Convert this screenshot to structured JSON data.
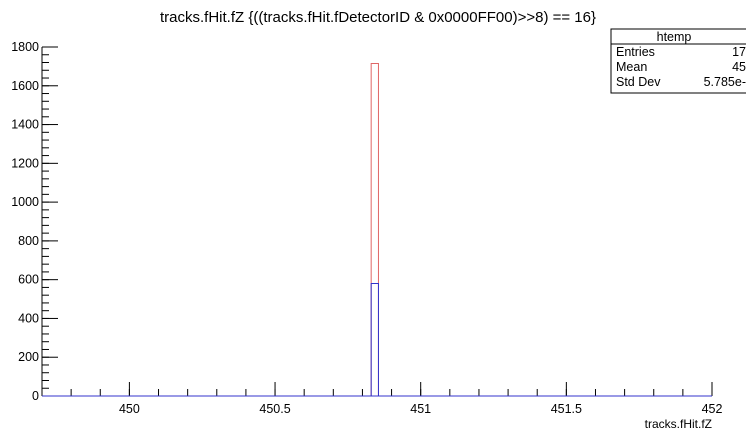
{
  "chart_data": {
    "type": "bar",
    "title": "tracks.fHit.fZ {((tracks.fHit.fDetectorID & 0x0000FF00)>>8) == 16}",
    "xlabel": "tracks.fHit.fZ",
    "ylabel": "",
    "xlim": [
      449.7,
      452.0
    ],
    "ylim": [
      0,
      1800
    ],
    "x_ticks": [
      {
        "value": 450,
        "label": "450"
      },
      {
        "value": 450.5,
        "label": "450.5"
      },
      {
        "value": 451,
        "label": "451"
      },
      {
        "value": 451.5,
        "label": "451.5"
      },
      {
        "value": 452,
        "label": "452"
      }
    ],
    "y_ticks": [
      {
        "value": 0,
        "label": "0"
      },
      {
        "value": 200,
        "label": "200"
      },
      {
        "value": 400,
        "label": "400"
      },
      {
        "value": 600,
        "label": "600"
      },
      {
        "value": 800,
        "label": "800"
      },
      {
        "value": 1000,
        "label": "1000"
      },
      {
        "value": 1200,
        "label": "1200"
      },
      {
        "value": 1400,
        "label": "1400"
      },
      {
        "value": 1600,
        "label": "1600"
      },
      {
        "value": 1800,
        "label": "1800"
      }
    ],
    "y_minor_step": 40,
    "x_minor_step": 0.1,
    "series": [
      {
        "color": "#e06666",
        "bins": [
          {
            "x_low": 450.83,
            "x_high": 450.855,
            "value": 1715
          }
        ]
      },
      {
        "color": "#3333cc",
        "bins": [
          {
            "x_low": 450.83,
            "x_high": 450.855,
            "value": 580
          }
        ]
      }
    ],
    "grid": false,
    "stats_box": {
      "name": "htemp",
      "rows": [
        {
          "label": "Entries",
          "value": "17"
        },
        {
          "label": "Mean",
          "value": "45"
        },
        {
          "label": "Std Dev",
          "value": "5.785e-"
        }
      ]
    }
  }
}
